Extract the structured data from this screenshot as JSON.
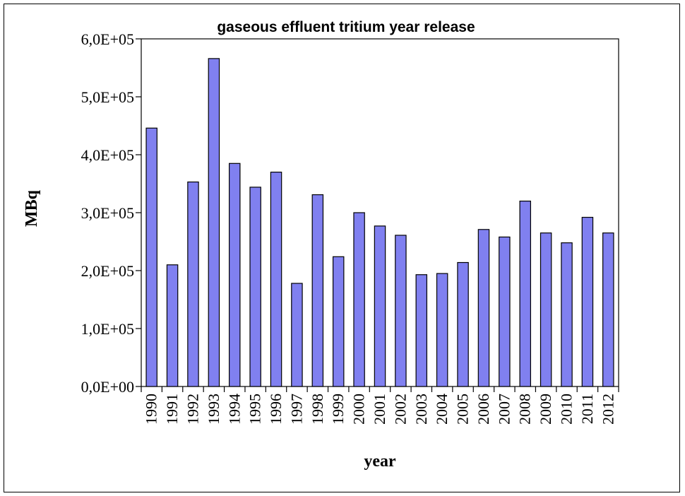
{
  "chart_data": {
    "type": "bar",
    "title": "gaseous effluent tritium year release",
    "xlabel": "year",
    "ylabel": "MBq",
    "categories": [
      "1990",
      "1991",
      "1992",
      "1993",
      "1994",
      "1995",
      "1996",
      "1997",
      "1998",
      "1999",
      "2000",
      "2001",
      "2002",
      "2003",
      "2004",
      "2005",
      "2006",
      "2007",
      "2008",
      "2009",
      "2010",
      "2011",
      "2012"
    ],
    "values": [
      446000,
      210000,
      353000,
      566000,
      385000,
      344000,
      370000,
      178000,
      331000,
      224000,
      300000,
      277000,
      261000,
      193000,
      195000,
      214000,
      271000,
      258000,
      320000,
      265000,
      248000,
      292000,
      265000
    ],
    "ylim": [
      0,
      600000
    ],
    "yticks": [
      0,
      100000,
      200000,
      300000,
      400000,
      500000,
      600000
    ],
    "ytick_labels": [
      "0,0E+00",
      "1,0E+05",
      "2,0E+05",
      "3,0E+05",
      "4,0E+05",
      "5,0E+05",
      "6,0E+05"
    ],
    "grid": false,
    "legend": "none",
    "bar_color": "#8080f0",
    "bar_edge_color": "#000000"
  }
}
